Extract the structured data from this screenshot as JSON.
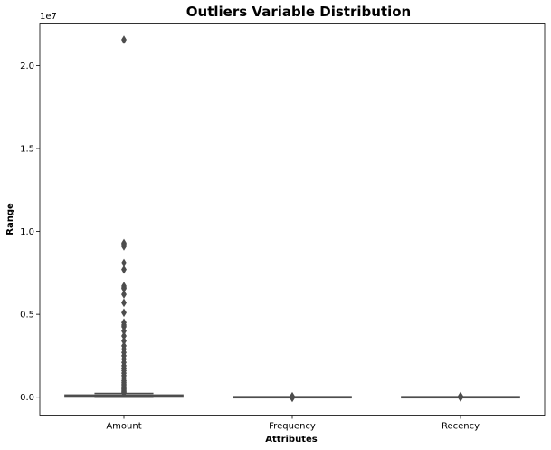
{
  "chart_data": {
    "type": "boxplot",
    "title": "Outliers Variable Distribution",
    "xlabel": "Attributes",
    "ylabel": "Range",
    "y_offset_label": "1e7",
    "ylim": [
      -1080000,
      22560000
    ],
    "yticks": [
      {
        "value": 0,
        "label": "0.0"
      },
      {
        "value": 5000000,
        "label": "0.5"
      },
      {
        "value": 10000000,
        "label": "1.0"
      },
      {
        "value": 15000000,
        "label": "1.5"
      },
      {
        "value": 20000000,
        "label": "2.0"
      }
    ],
    "categories": [
      "Amount",
      "Frequency",
      "Recency"
    ],
    "boxes": [
      {
        "name": "Amount",
        "color": "#e6a4a4",
        "q1": 10000,
        "median": 60000,
        "q3": 130000,
        "whisker_low": 0,
        "whisker_high": 230000,
        "outliers": [
          21550000,
          9300000,
          9200000,
          9100000,
          8100000,
          7700000,
          6700000,
          6600000,
          6550000,
          6200000,
          5700000,
          5100000,
          4500000,
          4350000,
          4250000,
          4000000,
          3700000,
          3400000,
          3100000,
          2900000,
          2700000,
          2500000,
          2300000,
          2100000,
          1900000,
          1750000,
          1600000,
          1450000,
          1300000,
          1150000,
          1000000,
          900000,
          800000,
          700000,
          600000,
          500000,
          430000,
          370000,
          310000,
          260000
        ]
      },
      {
        "name": "Frequency",
        "color": "#d4bd7a",
        "q1": 5,
        "median": 20,
        "q3": 60,
        "whisker_low": 0,
        "whisker_high": 140,
        "outliers": [
          60000,
          40000,
          20000,
          -20000,
          -40000
        ]
      },
      {
        "name": "Recency",
        "color": "#8fbf8a",
        "q1": 50,
        "median": 120,
        "q3": 250,
        "whisker_low": 0,
        "whisker_high": 500,
        "outliers": [
          70000,
          45000,
          20000,
          -20000
        ]
      }
    ]
  }
}
